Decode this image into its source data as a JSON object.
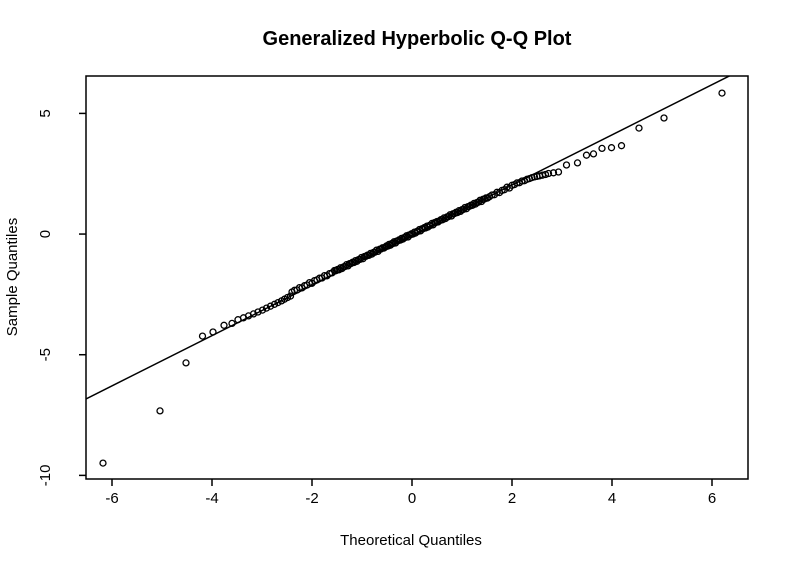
{
  "figure": {
    "background": "#ffffff",
    "foreground": "#000000"
  },
  "chart_data": {
    "type": "scatter",
    "title": "Generalized Hyperbolic Q-Q Plot",
    "xlabel": "Theoretical Quantiles",
    "ylabel": "Sample Quantiles",
    "xlim": [
      -6.52,
      6.72
    ],
    "ylim": [
      -10.15,
      6.55
    ],
    "x_ticks": [
      -6,
      -4,
      -2,
      0,
      2,
      4,
      6
    ],
    "y_ticks": [
      -10,
      -5,
      0,
      5
    ],
    "grid": false,
    "legend": null,
    "marker": "open-circle",
    "marker_radius_px": 3,
    "colors": {
      "points": "#000000",
      "line": "#000000",
      "background": "#ffffff"
    },
    "reference_line": {
      "slope": 1.04,
      "intercept": -0.05
    },
    "points": [
      [
        -6.18,
        -9.49
      ],
      [
        -5.04,
        -7.33
      ],
      [
        -4.52,
        -5.34
      ],
      [
        -4.19,
        -4.23
      ],
      [
        -3.98,
        -4.06
      ],
      [
        -3.76,
        -3.78
      ],
      [
        -3.6,
        -3.7
      ],
      [
        -3.48,
        -3.55
      ],
      [
        -3.37,
        -3.47
      ],
      [
        -3.27,
        -3.39
      ],
      [
        -3.17,
        -3.31
      ],
      [
        -3.08,
        -3.23
      ],
      [
        -2.99,
        -3.15
      ],
      [
        -2.91,
        -3.07
      ],
      [
        -2.83,
        -2.99
      ],
      [
        -2.75,
        -2.91
      ],
      [
        -2.68,
        -2.84
      ],
      [
        -2.61,
        -2.77
      ],
      [
        -2.55,
        -2.7
      ],
      [
        -2.49,
        -2.63
      ],
      [
        -2.43,
        -2.57
      ],
      [
        -2.4,
        -2.4
      ],
      [
        -2.35,
        -2.33
      ],
      [
        -2.3,
        -2.32
      ],
      [
        -2.25,
        -2.22
      ],
      [
        -2.2,
        -2.23
      ],
      [
        -2.15,
        -2.14
      ],
      [
        -2.1,
        -2.11
      ],
      [
        -2.05,
        -2.01
      ],
      [
        -2.0,
        -2.04
      ],
      [
        -1.95,
        -1.93
      ],
      [
        -1.9,
        -1.9
      ],
      [
        -1.85,
        -1.83
      ],
      [
        -1.8,
        -1.82
      ],
      [
        -1.75,
        -1.72
      ],
      [
        -1.7,
        -1.73
      ],
      [
        -1.65,
        -1.64
      ],
      [
        -1.6,
        -1.61
      ],
      [
        -1.55,
        -1.51
      ],
      [
        -1.52,
        -1.52
      ],
      [
        -1.49,
        -1.47
      ],
      [
        -1.46,
        -1.48
      ],
      [
        -1.43,
        -1.4
      ],
      [
        -1.4,
        -1.43
      ],
      [
        -1.37,
        -1.36
      ],
      [
        -1.34,
        -1.35
      ],
      [
        -1.31,
        -1.27
      ],
      [
        -1.28,
        -1.32
      ],
      [
        -1.25,
        -1.23
      ],
      [
        -1.22,
        -1.22
      ],
      [
        -1.19,
        -1.17
      ],
      [
        -1.16,
        -1.18
      ],
      [
        -1.13,
        -1.1
      ],
      [
        -1.1,
        -1.13
      ],
      [
        -1.07,
        -1.06
      ],
      [
        -1.04,
        -1.05
      ],
      [
        -1.01,
        -0.97
      ],
      [
        -0.98,
        -1.02
      ],
      [
        -0.95,
        -0.93
      ],
      [
        -0.92,
        -0.92
      ],
      [
        -0.89,
        -0.87
      ],
      [
        -0.86,
        -0.88
      ],
      [
        -0.83,
        -0.8
      ],
      [
        -0.8,
        -0.83
      ],
      [
        -0.77,
        -0.76
      ],
      [
        -0.74,
        -0.75
      ],
      [
        -0.71,
        -0.67
      ],
      [
        -0.68,
        -0.72
      ],
      [
        -0.65,
        -0.63
      ],
      [
        -0.62,
        -0.62
      ],
      [
        -0.59,
        -0.57
      ],
      [
        -0.56,
        -0.58
      ],
      [
        -0.53,
        -0.53
      ],
      [
        -0.51,
        -0.49
      ],
      [
        -0.48,
        -0.5
      ],
      [
        -0.46,
        -0.43
      ],
      [
        -0.43,
        -0.46
      ],
      [
        -0.41,
        -0.4
      ],
      [
        -0.38,
        -0.39
      ],
      [
        -0.36,
        -0.32
      ],
      [
        -0.33,
        -0.37
      ],
      [
        -0.31,
        -0.29
      ],
      [
        -0.28,
        -0.28
      ],
      [
        -0.26,
        -0.24
      ],
      [
        -0.23,
        -0.25
      ],
      [
        -0.21,
        -0.18
      ],
      [
        -0.18,
        -0.21
      ],
      [
        -0.16,
        -0.15
      ],
      [
        -0.13,
        -0.14
      ],
      [
        -0.11,
        -0.07
      ],
      [
        -0.08,
        -0.12
      ],
      [
        -0.06,
        -0.04
      ],
      [
        -0.03,
        -0.03
      ],
      [
        -0.01,
        0.01
      ],
      [
        0.02,
        0.0
      ],
      [
        0.05,
        0.08
      ],
      [
        0.07,
        0.04
      ],
      [
        0.1,
        0.11
      ],
      [
        0.12,
        0.11
      ],
      [
        0.15,
        0.19
      ],
      [
        0.17,
        0.13
      ],
      [
        0.2,
        0.22
      ],
      [
        0.22,
        0.22
      ],
      [
        0.25,
        0.27
      ],
      [
        0.27,
        0.25
      ],
      [
        0.3,
        0.33
      ],
      [
        0.32,
        0.29
      ],
      [
        0.35,
        0.36
      ],
      [
        0.37,
        0.36
      ],
      [
        0.4,
        0.44
      ],
      [
        0.42,
        0.38
      ],
      [
        0.45,
        0.47
      ],
      [
        0.47,
        0.47
      ],
      [
        0.5,
        0.52
      ],
      [
        0.52,
        0.5
      ],
      [
        0.55,
        0.55
      ],
      [
        0.58,
        0.6
      ],
      [
        0.61,
        0.59
      ],
      [
        0.64,
        0.67
      ],
      [
        0.67,
        0.64
      ],
      [
        0.7,
        0.71
      ],
      [
        0.73,
        0.72
      ],
      [
        0.76,
        0.8
      ],
      [
        0.79,
        0.75
      ],
      [
        0.82,
        0.84
      ],
      [
        0.85,
        0.85
      ],
      [
        0.88,
        0.9
      ],
      [
        0.91,
        0.89
      ],
      [
        0.94,
        0.97
      ],
      [
        0.97,
        0.94
      ],
      [
        1.0,
        1.01
      ],
      [
        1.03,
        1.02
      ],
      [
        1.06,
        1.1
      ],
      [
        1.09,
        1.05
      ],
      [
        1.12,
        1.14
      ],
      [
        1.15,
        1.15
      ],
      [
        1.18,
        1.2
      ],
      [
        1.21,
        1.19
      ],
      [
        1.24,
        1.27
      ],
      [
        1.27,
        1.24
      ],
      [
        1.3,
        1.31
      ],
      [
        1.33,
        1.32
      ],
      [
        1.36,
        1.4
      ],
      [
        1.39,
        1.35
      ],
      [
        1.42,
        1.44
      ],
      [
        1.45,
        1.45
      ],
      [
        1.48,
        1.5
      ],
      [
        1.51,
        1.49
      ],
      [
        1.55,
        1.55
      ],
      [
        1.6,
        1.62
      ],
      [
        1.65,
        1.63
      ],
      [
        1.7,
        1.73
      ],
      [
        1.75,
        1.72
      ],
      [
        1.8,
        1.81
      ],
      [
        1.85,
        1.84
      ],
      [
        1.9,
        1.94
      ],
      [
        1.95,
        1.91
      ],
      [
        2.0,
        2.02
      ],
      [
        2.05,
        2.05
      ],
      [
        2.1,
        2.12
      ],
      [
        2.15,
        2.13
      ],
      [
        2.2,
        2.2
      ],
      [
        2.25,
        2.21
      ],
      [
        2.3,
        2.27
      ],
      [
        2.35,
        2.3
      ],
      [
        2.4,
        2.34
      ],
      [
        2.45,
        2.37
      ],
      [
        2.5,
        2.39
      ],
      [
        2.55,
        2.41
      ],
      [
        2.61,
        2.44
      ],
      [
        2.67,
        2.47
      ],
      [
        2.73,
        2.51
      ],
      [
        2.83,
        2.54
      ],
      [
        2.93,
        2.57
      ],
      [
        3.09,
        2.86
      ],
      [
        3.31,
        2.95
      ],
      [
        3.49,
        3.27
      ],
      [
        3.63,
        3.32
      ],
      [
        3.8,
        3.55
      ],
      [
        3.99,
        3.58
      ],
      [
        4.19,
        3.66
      ],
      [
        4.54,
        4.39
      ],
      [
        5.04,
        4.81
      ],
      [
        6.2,
        5.84
      ]
    ]
  }
}
